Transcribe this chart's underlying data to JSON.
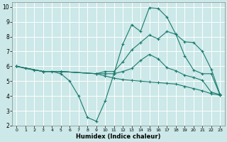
{
  "background_color": "#cce8e8",
  "grid_color": "#ffffff",
  "line_color": "#1a7a6e",
  "xlabel": "Humidex (Indice chaleur)",
  "xlim": [
    -0.5,
    23.5
  ],
  "ylim": [
    2,
    10.3
  ],
  "xticks": [
    0,
    1,
    2,
    3,
    4,
    5,
    6,
    7,
    8,
    9,
    10,
    11,
    12,
    13,
    14,
    15,
    16,
    17,
    18,
    19,
    20,
    21,
    22,
    23
  ],
  "yticks": [
    2,
    3,
    4,
    5,
    6,
    7,
    8,
    9,
    10
  ],
  "lines": [
    {
      "x": [
        0,
        1,
        2,
        3,
        4,
        5,
        6,
        7,
        8,
        9,
        10,
        11,
        12,
        13,
        14,
        15,
        16,
        17,
        18,
        19,
        20,
        21,
        22,
        23
      ],
      "y": [
        6,
        5.85,
        5.75,
        5.65,
        5.65,
        5.5,
        5.0,
        4.0,
        2.55,
        2.3,
        3.65,
        5.5,
        7.5,
        8.8,
        8.35,
        9.95,
        9.9,
        9.3,
        8.15,
        6.7,
        5.75,
        5.5,
        5.5,
        4.05
      ]
    },
    {
      "x": [
        0,
        3,
        5,
        9,
        10,
        11,
        12,
        13,
        14,
        15,
        16,
        17,
        18,
        19,
        20,
        21,
        22,
        23
      ],
      "y": [
        6,
        5.65,
        5.65,
        5.5,
        5.65,
        5.65,
        6.3,
        7.1,
        7.6,
        8.1,
        7.85,
        8.35,
        8.15,
        7.65,
        7.6,
        7.0,
        5.8,
        4.1
      ]
    },
    {
      "x": [
        0,
        3,
        5,
        9,
        10,
        11,
        12,
        13,
        14,
        15,
        16,
        17,
        18,
        19,
        20,
        21,
        22,
        23
      ],
      "y": [
        6,
        5.65,
        5.65,
        5.5,
        5.5,
        5.5,
        5.65,
        5.85,
        6.4,
        6.8,
        6.5,
        5.9,
        5.7,
        5.4,
        5.25,
        5.05,
        4.25,
        4.1
      ]
    },
    {
      "x": [
        0,
        3,
        5,
        9,
        10,
        11,
        12,
        13,
        14,
        15,
        16,
        17,
        18,
        19,
        20,
        21,
        22,
        23
      ],
      "y": [
        6,
        5.65,
        5.65,
        5.5,
        5.35,
        5.2,
        5.1,
        5.05,
        5.0,
        4.95,
        4.9,
        4.85,
        4.8,
        4.65,
        4.5,
        4.35,
        4.15,
        4.05
      ]
    }
  ]
}
